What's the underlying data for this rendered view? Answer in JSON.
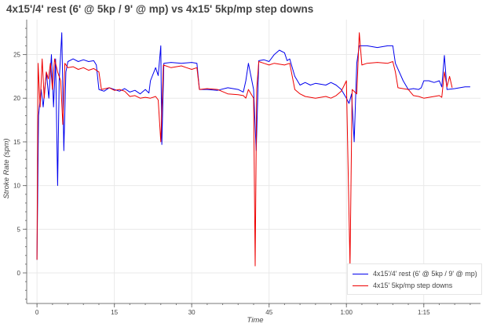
{
  "chart_data": {
    "type": "line",
    "title": "4x15'/4' rest (6' @ 5kp / 9' @ mp) vs 4x15' 5kp/mp step downs",
    "xlabel": "Time",
    "ylabel": "Stroke Rate (spm)",
    "xlim": [
      -2,
      86
    ],
    "ylim": [
      -3.5,
      29
    ],
    "x_ticks": [
      0,
      15,
      30,
      45,
      60,
      75
    ],
    "x_tick_labels": [
      "0",
      "15",
      "30",
      "45",
      "1:00",
      "1:15"
    ],
    "y_ticks": [
      0,
      5,
      10,
      15,
      20,
      25
    ],
    "grid": true,
    "legend_position": "bottom-right",
    "series": [
      {
        "name": "4x15'/4' rest (6' @ 5kp / 9' @ mp)",
        "color": "#0000ee",
        "points": [
          [
            0,
            1.5
          ],
          [
            0.3,
            18
          ],
          [
            0.8,
            21
          ],
          [
            1.2,
            19
          ],
          [
            1.8,
            23
          ],
          [
            2.3,
            20
          ],
          [
            2.8,
            25
          ],
          [
            3.2,
            19
          ],
          [
            3.6,
            24.5
          ],
          [
            4.0,
            10
          ],
          [
            4.3,
            22
          ],
          [
            4.8,
            27.5
          ],
          [
            5.2,
            14
          ],
          [
            5.6,
            23
          ],
          [
            6,
            24.2
          ],
          [
            7,
            24.5
          ],
          [
            8,
            24.2
          ],
          [
            9,
            24.4
          ],
          [
            10,
            24.2
          ],
          [
            11,
            24.3
          ],
          [
            11.5,
            23.8
          ],
          [
            12,
            21
          ],
          [
            13,
            20.8
          ],
          [
            14,
            21.2
          ],
          [
            15,
            21
          ],
          [
            16,
            20.8
          ],
          [
            17,
            21.1
          ],
          [
            18,
            20.7
          ],
          [
            19,
            20.9
          ],
          [
            20,
            20.5
          ],
          [
            21,
            21
          ],
          [
            21.7,
            20.6
          ],
          [
            22,
            22
          ],
          [
            23,
            23.5
          ],
          [
            23.5,
            22.6
          ],
          [
            24,
            26
          ],
          [
            24.2,
            14.7
          ],
          [
            24.6,
            24
          ],
          [
            26,
            24.1
          ],
          [
            28,
            24
          ],
          [
            30,
            24.1
          ],
          [
            31,
            24
          ],
          [
            31.5,
            21
          ],
          [
            33,
            21
          ],
          [
            35,
            20.9
          ],
          [
            37,
            21.2
          ],
          [
            39,
            21
          ],
          [
            40,
            20.7
          ],
          [
            40.5,
            22
          ],
          [
            41,
            24
          ],
          [
            42,
            21
          ],
          [
            42.5,
            14
          ],
          [
            43,
            24.3
          ],
          [
            44,
            24.4
          ],
          [
            45,
            24.2
          ],
          [
            46,
            25
          ],
          [
            47,
            25.5
          ],
          [
            48,
            25.2
          ],
          [
            48.5,
            24.3
          ],
          [
            49,
            24.5
          ],
          [
            50,
            22.5
          ],
          [
            51,
            21.5
          ],
          [
            52,
            21.8
          ],
          [
            53,
            21.5
          ],
          [
            54,
            21.7
          ],
          [
            55,
            21.6
          ],
          [
            56,
            21.5
          ],
          [
            57,
            21.8
          ],
          [
            58,
            21.5
          ],
          [
            59,
            21
          ],
          [
            60,
            20
          ],
          [
            60.5,
            19.4
          ],
          [
            61,
            20.5
          ],
          [
            61.5,
            15
          ],
          [
            62,
            24
          ],
          [
            62.5,
            26
          ],
          [
            64,
            26
          ],
          [
            66,
            25.8
          ],
          [
            68,
            26
          ],
          [
            69,
            26
          ],
          [
            69.5,
            24
          ],
          [
            71,
            22
          ],
          [
            72,
            21
          ],
          [
            73,
            21.1
          ],
          [
            74,
            21
          ],
          [
            74.5,
            21.2
          ],
          [
            75,
            22
          ],
          [
            76,
            22
          ],
          [
            77,
            21.8
          ],
          [
            78,
            22
          ],
          [
            78.5,
            21.3
          ],
          [
            79,
            24.9
          ],
          [
            79.5,
            21
          ],
          [
            81,
            21.1
          ],
          [
            83,
            21.3
          ],
          [
            84,
            21.3
          ]
        ]
      },
      {
        "name": "4x15' 5kp/mp step downs",
        "color": "#ee0000",
        "points": [
          [
            0,
            1.5
          ],
          [
            0.2,
            24
          ],
          [
            0.6,
            19
          ],
          [
            1.0,
            24.5
          ],
          [
            1.4,
            20
          ],
          [
            1.8,
            23
          ],
          [
            2.2,
            22.2
          ],
          [
            2.6,
            24
          ],
          [
            3.0,
            21
          ],
          [
            3.4,
            24.5
          ],
          [
            4.0,
            23
          ],
          [
            4.6,
            22
          ],
          [
            5.0,
            17
          ],
          [
            5.4,
            24
          ],
          [
            6,
            23.5
          ],
          [
            7,
            23.6
          ],
          [
            8,
            23.3
          ],
          [
            9,
            23.5
          ],
          [
            10,
            23.2
          ],
          [
            11,
            23.4
          ],
          [
            12,
            23
          ],
          [
            12.5,
            21
          ],
          [
            14,
            21.2
          ],
          [
            15,
            20.9
          ],
          [
            16,
            21
          ],
          [
            17,
            20.8
          ],
          [
            18,
            20.2
          ],
          [
            19,
            20.3
          ],
          [
            20,
            20
          ],
          [
            21,
            20.1
          ],
          [
            22,
            20
          ],
          [
            23,
            20.2
          ],
          [
            23.5,
            19.8
          ],
          [
            24,
            15
          ],
          [
            24.5,
            23.8
          ],
          [
            26,
            23.5
          ],
          [
            28,
            23.7
          ],
          [
            29,
            23.5
          ],
          [
            30,
            23.3
          ],
          [
            31,
            23.5
          ],
          [
            31.5,
            21
          ],
          [
            33,
            21.1
          ],
          [
            35,
            21
          ],
          [
            37,
            20.5
          ],
          [
            39,
            20.4
          ],
          [
            40,
            20.3
          ],
          [
            40.5,
            20
          ],
          [
            41,
            21
          ],
          [
            42,
            20
          ],
          [
            42.3,
            0.8
          ],
          [
            42.6,
            21
          ],
          [
            43,
            24.2
          ],
          [
            44,
            24
          ],
          [
            45,
            23.8
          ],
          [
            46,
            24
          ],
          [
            48,
            23.8
          ],
          [
            49,
            24
          ],
          [
            50,
            21
          ],
          [
            51,
            20.5
          ],
          [
            52,
            20.2
          ],
          [
            54,
            20
          ],
          [
            56,
            20.2
          ],
          [
            57,
            20
          ],
          [
            58,
            20.3
          ],
          [
            59,
            20.8
          ],
          [
            60,
            22
          ],
          [
            60.7,
            0.8
          ],
          [
            61.1,
            21
          ],
          [
            62,
            20.5
          ],
          [
            62.5,
            27.5
          ],
          [
            63,
            23.8
          ],
          [
            64,
            24
          ],
          [
            66,
            24.1
          ],
          [
            68,
            24
          ],
          [
            69,
            24.2
          ],
          [
            69.5,
            23
          ],
          [
            70,
            21.2
          ],
          [
            72,
            21
          ],
          [
            73,
            20.3
          ],
          [
            74,
            20.2
          ],
          [
            75,
            20
          ],
          [
            76,
            20.1
          ],
          [
            78,
            20.3
          ],
          [
            78.5,
            20.1
          ],
          [
            79,
            23
          ],
          [
            79.5,
            21.3
          ],
          [
            80,
            22.5
          ],
          [
            80.5,
            21.2
          ]
        ]
      }
    ]
  }
}
